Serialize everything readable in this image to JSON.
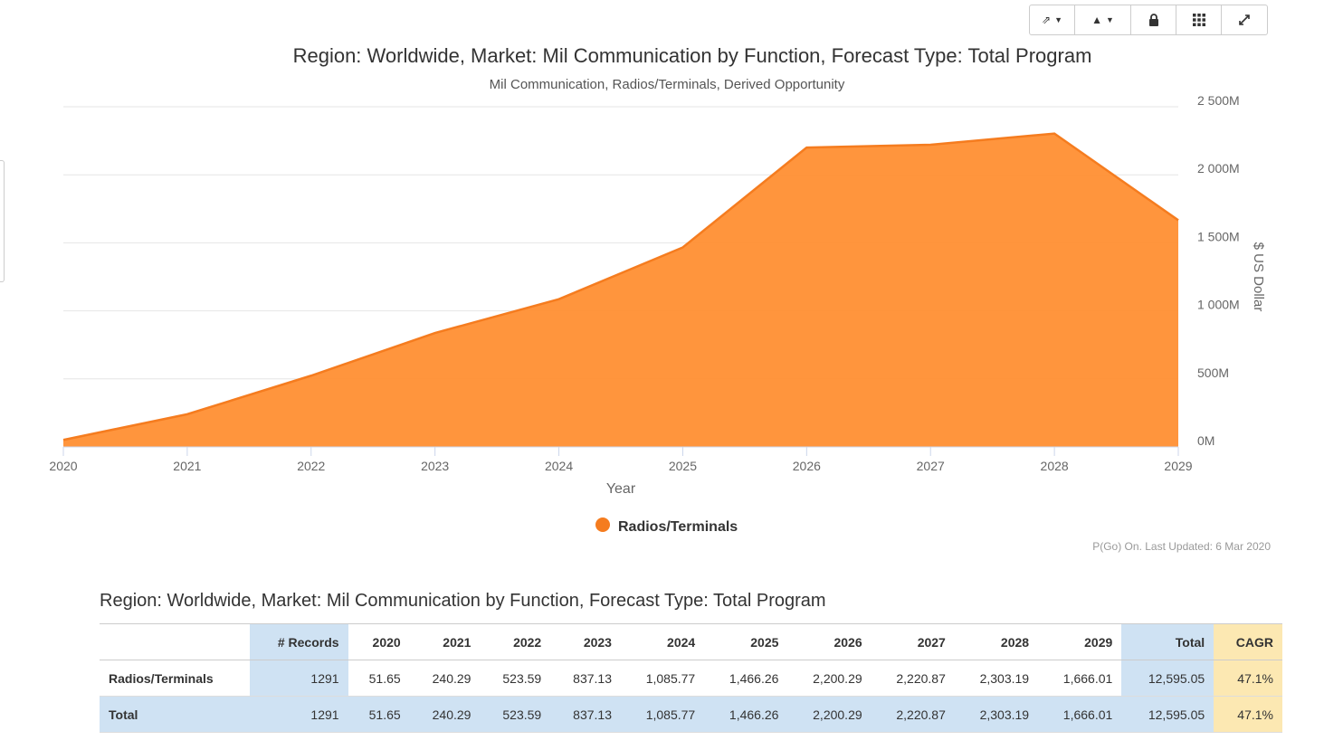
{
  "toolbar": {
    "buttons": [
      {
        "name": "share-icon",
        "glyph": "⇗",
        "caret": "▼"
      },
      {
        "name": "chart-type-icon",
        "glyph": "▲",
        "caret": "▼"
      },
      {
        "name": "lock-icon",
        "glyph": "🔒",
        "caret": ""
      },
      {
        "name": "grid-icon",
        "glyph": "▦",
        "caret": ""
      },
      {
        "name": "expand-icon",
        "glyph": "⤢",
        "caret": ""
      }
    ]
  },
  "chart_data": {
    "type": "area",
    "title": "Region: Worldwide, Market: Mil Communication by Function, Forecast Type: Total Program",
    "subtitle": "Mil Communication, Radios/Terminals, Derived Opportunity",
    "xlabel": "Year",
    "ylabel": "$ US Dollar",
    "x": [
      "2020",
      "2021",
      "2022",
      "2023",
      "2024",
      "2025",
      "2026",
      "2027",
      "2028",
      "2029"
    ],
    "series": [
      {
        "name": "Radios/Terminals",
        "color": "#ff8f33",
        "line_color": "#f57c1f",
        "values": [
          51.65,
          240.29,
          523.59,
          837.13,
          1085.77,
          1466.26,
          2200.29,
          2220.87,
          2303.19,
          1666.01
        ]
      }
    ],
    "ylim": [
      0,
      2500
    ],
    "yticks": [
      0,
      500,
      1000,
      1500,
      2000,
      2500
    ],
    "ytick_labels": [
      "0M",
      "500M",
      "1 000M",
      "1 500M",
      "2 000M",
      "2 500M"
    ],
    "legend_position": "bottom-center",
    "credit": "P(Go) On. Last Updated: 6 Mar 2020"
  },
  "table": {
    "title": "Region: Worldwide, Market: Mil Communication by Function, Forecast Type: Total Program",
    "headers": [
      "",
      "# Records",
      "2020",
      "2021",
      "2022",
      "2023",
      "2024",
      "2025",
      "2026",
      "2027",
      "2028",
      "2029",
      "Total",
      "CAGR"
    ],
    "rows": [
      [
        "Radios/Terminals",
        "1291",
        "51.65",
        "240.29",
        "523.59",
        "837.13",
        "1,085.77",
        "1,466.26",
        "2,200.29",
        "2,220.87",
        "2,303.19",
        "1,666.01",
        "12,595.05",
        "47.1%"
      ],
      [
        "Total",
        "1291",
        "51.65",
        "240.29",
        "523.59",
        "837.13",
        "1,085.77",
        "1,466.26",
        "2,200.29",
        "2,220.87",
        "2,303.19",
        "1,666.01",
        "12,595.05",
        "47.1%"
      ]
    ]
  }
}
